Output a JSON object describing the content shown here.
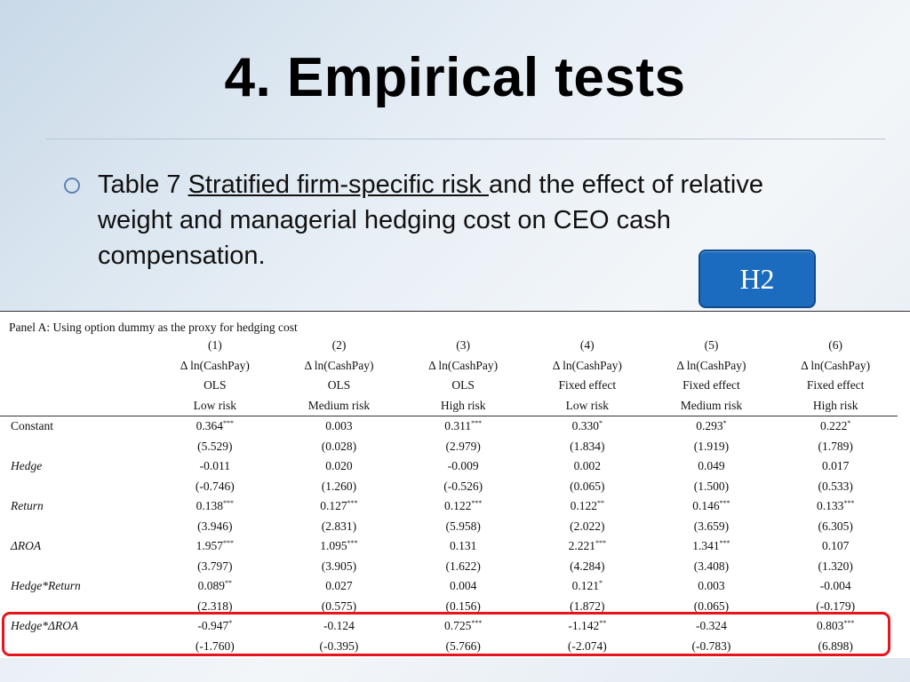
{
  "slide": {
    "title": "4. Empirical tests",
    "bullet": {
      "prefix": "Table 7 ",
      "underlined": "Stratified firm-specific risk ",
      "suffix": "and the effect of relative weight and managerial hedging cost on CEO cash compensation."
    },
    "badge": "H2"
  },
  "table": {
    "panel_caption": "Panel A: Using option dummy as the proxy for hedging cost",
    "col_numbers": [
      "(1)",
      "(2)",
      "(3)",
      "(4)",
      "(5)",
      "(6)"
    ],
    "dep_var": "Δ ln(CashPay)",
    "methods": [
      "OLS",
      "OLS",
      "OLS",
      "Fixed effect",
      "Fixed effect",
      "Fixed effect"
    ],
    "risk_groups": [
      "Low risk",
      "Medium risk",
      "High risk",
      "Low risk",
      "Medium risk",
      "High risk"
    ],
    "rows": [
      {
        "label": "Constant",
        "coef": [
          "0.364",
          "0.003",
          "0.311",
          "0.330",
          "0.293",
          "0.222"
        ],
        "stars": [
          "***",
          "",
          "***",
          "*",
          "*",
          "*"
        ],
        "t": [
          "(5.529)",
          "(0.028)",
          "(2.979)",
          "(1.834)",
          "(1.919)",
          "(1.789)"
        ]
      },
      {
        "label": "Hedge",
        "coef": [
          "-0.011",
          "0.020",
          "-0.009",
          "0.002",
          "0.049",
          "0.017"
        ],
        "stars": [
          "",
          "",
          "",
          "",
          "",
          ""
        ],
        "t": [
          "(-0.746)",
          "(1.260)",
          "(-0.526)",
          "(0.065)",
          "(1.500)",
          "(0.533)"
        ]
      },
      {
        "label": "Return",
        "coef": [
          "0.138",
          "0.127",
          "0.122",
          "0.122",
          "0.146",
          "0.133"
        ],
        "stars": [
          "***",
          "***",
          "***",
          "**",
          "***",
          "***"
        ],
        "t": [
          "(3.946)",
          "(2.831)",
          "(5.958)",
          "(2.022)",
          "(3.659)",
          "(6.305)"
        ]
      },
      {
        "label": "ΔROA",
        "coef": [
          "1.957",
          "1.095",
          "0.131",
          "2.221",
          "1.341",
          "0.107"
        ],
        "stars": [
          "***",
          "***",
          "",
          "***",
          "***",
          ""
        ],
        "t": [
          "(3.797)",
          "(3.905)",
          "(1.622)",
          "(4.284)",
          "(3.408)",
          "(1.320)"
        ]
      },
      {
        "label": "Hedge*Return",
        "coef": [
          "0.089",
          "0.027",
          "0.004",
          "0.121",
          "0.003",
          "-0.004"
        ],
        "stars": [
          "**",
          "",
          "",
          "*",
          "",
          ""
        ],
        "t": [
          "(2.318)",
          "(0.575)",
          "(0.156)",
          "(1.872)",
          "(0.065)",
          "(-0.179)"
        ]
      },
      {
        "label": "Hedge*ΔROA",
        "coef": [
          "-0.947",
          "-0.124",
          "0.725",
          "-1.142",
          "-0.324",
          "0.803"
        ],
        "stars": [
          "*",
          "",
          "***",
          "**",
          "",
          "***"
        ],
        "t": [
          "(-1.760)",
          "(-0.395)",
          "(5.766)",
          "(-2.074)",
          "(-0.783)",
          "(6.898)"
        ]
      }
    ]
  },
  "colors": {
    "badge_bg": "#1b6bbf",
    "highlight": "#e8141c",
    "bullet": "#5d84b0"
  }
}
